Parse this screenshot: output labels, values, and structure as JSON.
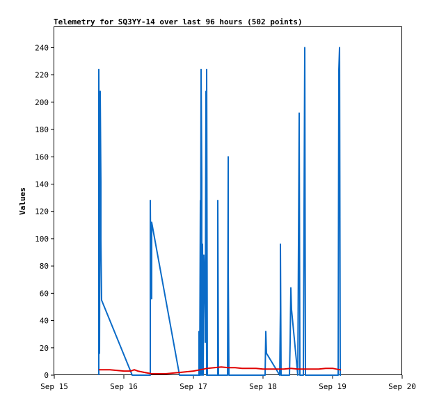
{
  "chart_data": {
    "type": "line",
    "title": "Telemetry for SQ3YY-14 over last 96 hours (502 points)",
    "xlabel": "",
    "ylabel": "Values",
    "x_tick_labels": [
      "Sep 15",
      "Sep 16",
      "Sep 17",
      "Sep 18",
      "Sep 19",
      "Sep 20"
    ],
    "y_ticks": [
      0,
      20,
      40,
      60,
      80,
      100,
      120,
      140,
      160,
      180,
      200,
      220,
      240
    ],
    "xlim": [
      0,
      5
    ],
    "ylim": [
      0,
      255
    ],
    "grid": false,
    "legend": "none",
    "colors": {
      "blue_series": "#0b6bc7",
      "red_series": "#e00000",
      "axis": "#000000"
    },
    "series": [
      {
        "color": "#0b6bc7",
        "x": [
          0.64,
          0.64,
          0.65,
          0.65,
          0.66,
          0.67,
          0.67,
          0.68,
          1.12,
          1.38,
          1.38,
          1.39,
          1.39,
          1.4,
          1.4,
          1.8,
          2.08,
          2.08,
          2.09,
          2.1,
          2.1,
          2.11,
          2.12,
          2.12,
          2.13,
          2.14,
          2.15,
          2.16,
          2.17,
          2.17,
          2.18,
          2.19,
          2.19,
          2.2,
          2.35,
          2.35,
          2.36,
          2.49,
          2.5,
          2.5,
          2.51,
          2.52,
          3.03,
          3.04,
          3.05,
          3.24,
          3.25,
          3.25,
          3.26,
          3.38,
          3.39,
          3.4,
          3.41,
          3.5,
          3.51,
          3.52,
          3.53,
          3.58,
          3.59,
          3.6,
          3.61,
          3.62,
          3.63,
          4.08,
          4.09,
          4.1,
          4.11,
          4.12
        ],
        "values": [
          0,
          224,
          104,
          16,
          208,
          142,
          100,
          55,
          0,
          0,
          128,
          56,
          112,
          56,
          112,
          0,
          0,
          32,
          0,
          128,
          0,
          224,
          144,
          0,
          96,
          0,
          88,
          72,
          40,
          24,
          208,
          0,
          224,
          0,
          0,
          128,
          0,
          0,
          160,
          80,
          0,
          0,
          0,
          32,
          16,
          0,
          48,
          96,
          0,
          0,
          24,
          64,
          48,
          0,
          96,
          192,
          0,
          0,
          120,
          240,
          0,
          0,
          0,
          0,
          224,
          240,
          0,
          0
        ]
      },
      {
        "color": "#e00000",
        "x": [
          0.64,
          0.8,
          1.0,
          1.1,
          1.15,
          1.2,
          1.3,
          1.4,
          1.6,
          1.8,
          2.0,
          2.1,
          2.15,
          2.2,
          2.3,
          2.4,
          2.5,
          2.6,
          2.7,
          2.8,
          2.9,
          3.0,
          3.1,
          3.2,
          3.3,
          3.4,
          3.5,
          3.6,
          3.7,
          3.8,
          3.9,
          4.0,
          4.05,
          4.1,
          4.12
        ],
        "values": [
          4,
          4,
          3,
          3,
          4,
          3,
          2,
          1,
          1,
          2,
          3,
          4,
          4.5,
          5,
          5.5,
          6,
          5.5,
          5.5,
          5,
          5,
          5,
          4.5,
          4.5,
          4.5,
          4.5,
          5,
          4.5,
          4.5,
          4.5,
          4.5,
          5,
          5,
          4.5,
          4,
          4
        ]
      }
    ]
  }
}
